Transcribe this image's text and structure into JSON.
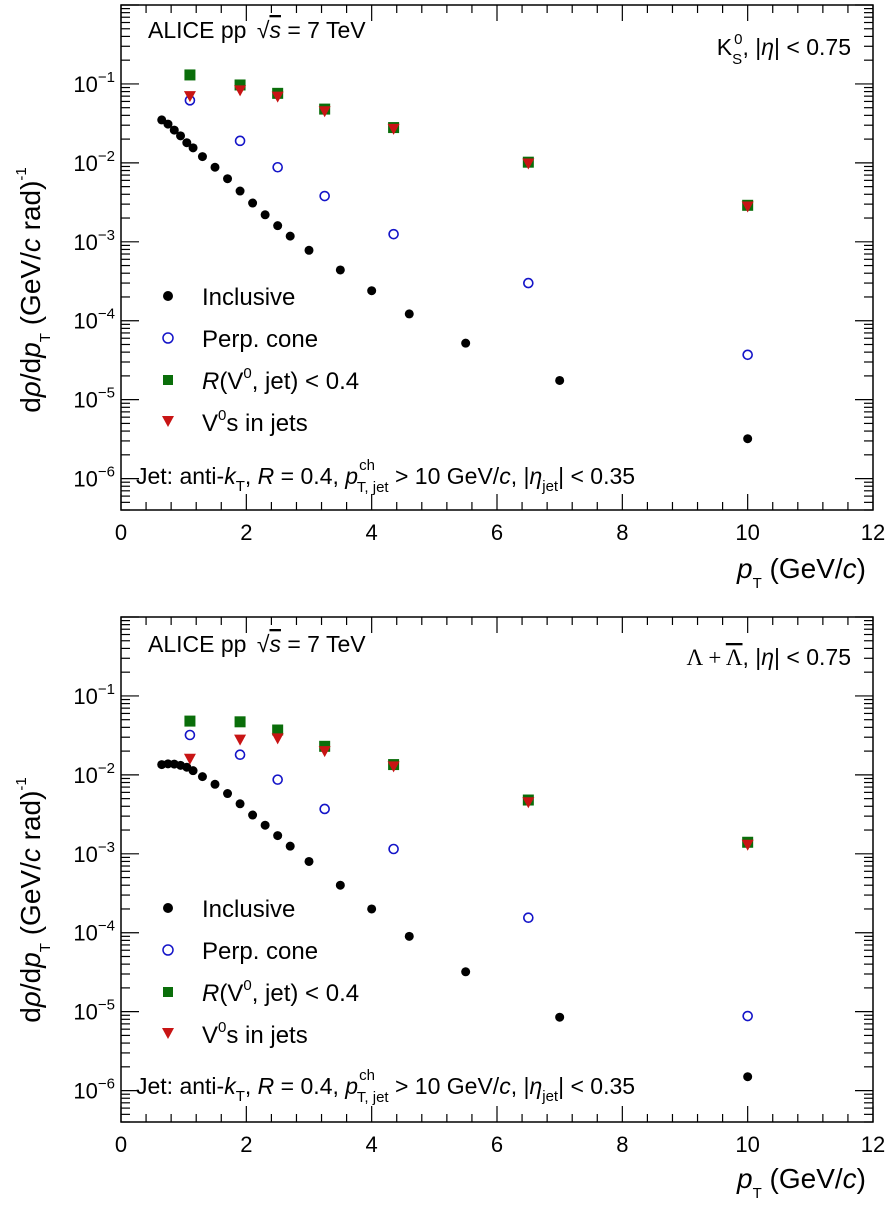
{
  "colors": {
    "inclusive": "#000000",
    "perp_cone": "#1414c8",
    "r_v0_jet": "#0a6e0a",
    "v0_in_jets": "#c81414"
  },
  "chart_data": [
    {
      "type": "scatter",
      "panel": "top",
      "particle_label": "K⁰S, |η| < 0.75",
      "collab_label": "ALICE pp √s = 7 TeV",
      "jet_label": "Jet: anti-kT, R = 0.4, pchT, jet > 10 GeV/c, |ηjet| < 0.35",
      "xlabel": "pT (GeV/c)",
      "ylabel": "dρ/dpT (GeV/c rad)-1",
      "xlim": [
        0,
        12
      ],
      "ylim": [
        4e-07,
        1
      ],
      "yscale": "log",
      "xticks": [
        "0",
        "2",
        "4",
        "6",
        "8",
        "10",
        "12"
      ],
      "yticks": [
        "10-6",
        "10-5",
        "10-4",
        "10-3",
        "10-2",
        "10-1"
      ],
      "legend": [
        "Inclusive",
        "Perp. cone",
        "R(V0, jet) < 0.4",
        "V0s in jets"
      ],
      "series": [
        {
          "name": "Inclusive",
          "marker": "filled-circle",
          "color_key": "inclusive",
          "x": [
            0.65,
            0.75,
            0.85,
            0.95,
            1.05,
            1.15,
            1.3,
            1.5,
            1.7,
            1.9,
            2.1,
            2.3,
            2.5,
            2.7,
            3.0,
            3.5,
            4.0,
            4.6,
            5.5,
            7.0,
            10.0
          ],
          "y": [
            0.035,
            0.031,
            0.026,
            0.022,
            0.018,
            0.0155,
            0.012,
            0.0088,
            0.0063,
            0.0044,
            0.0031,
            0.0022,
            0.0016,
            0.00118,
            0.00078,
            0.00044,
            0.00024,
            0.000122,
            5.2e-05,
            1.75e-05,
            3.2e-06
          ]
        },
        {
          "name": "Perp. cone",
          "marker": "open-circle",
          "color_key": "perp_cone",
          "x": [
            1.1,
            1.9,
            2.5,
            3.25,
            4.35,
            6.5,
            10.0
          ],
          "y": [
            0.062,
            0.019,
            0.0088,
            0.0038,
            0.00125,
            0.0003,
            3.7e-05
          ]
        },
        {
          "name": "R(V0, jet) < 0.4",
          "marker": "square",
          "color_key": "r_v0_jet",
          "x": [
            1.1,
            1.9,
            2.5,
            3.25,
            4.35,
            6.5,
            10.0
          ],
          "y": [
            0.13,
            0.097,
            0.076,
            0.048,
            0.028,
            0.0102,
            0.0029
          ]
        },
        {
          "name": "V0s in jets",
          "marker": "triangle-down",
          "color_key": "v0_in_jets",
          "x": [
            1.1,
            1.9,
            2.5,
            3.25,
            4.35,
            6.5,
            10.0
          ],
          "y": [
            0.07,
            0.083,
            0.069,
            0.045,
            0.027,
            0.0098,
            0.0028
          ]
        }
      ]
    },
    {
      "type": "scatter",
      "panel": "bottom",
      "particle_label": "Λ + Λ̄, |η| < 0.75",
      "collab_label": "ALICE pp √s = 7 TeV",
      "jet_label": "Jet: anti-kT, R = 0.4, pchT, jet > 10 GeV/c, |ηjet| < 0.35",
      "xlabel": "pT (GeV/c)",
      "ylabel": "dρ/dpT (GeV/c rad)-1",
      "xlim": [
        0,
        12
      ],
      "ylim": [
        4e-07,
        1
      ],
      "yscale": "log",
      "xticks": [
        "0",
        "2",
        "4",
        "6",
        "8",
        "10",
        "12"
      ],
      "yticks": [
        "10-6",
        "10-5",
        "10-4",
        "10-3",
        "10-2",
        "10-1"
      ],
      "legend": [
        "Inclusive",
        "Perp. cone",
        "R(V0, jet) < 0.4",
        "V0s in jets"
      ],
      "series": [
        {
          "name": "Inclusive",
          "marker": "filled-circle",
          "color_key": "inclusive",
          "x": [
            0.65,
            0.75,
            0.85,
            0.95,
            1.05,
            1.15,
            1.3,
            1.5,
            1.7,
            1.9,
            2.1,
            2.3,
            2.5,
            2.7,
            3.0,
            3.5,
            4.0,
            4.6,
            5.5,
            7.0,
            10.0
          ],
          "y": [
            0.0135,
            0.0138,
            0.0137,
            0.0132,
            0.0125,
            0.0113,
            0.0095,
            0.0076,
            0.0058,
            0.0043,
            0.0031,
            0.0023,
            0.0017,
            0.00125,
            0.0008,
            0.0004,
            0.0002,
            9e-05,
            3.2e-05,
            8.5e-06,
            1.5e-06
          ]
        },
        {
          "name": "Perp. cone",
          "marker": "open-circle",
          "color_key": "perp_cone",
          "x": [
            1.1,
            1.9,
            2.5,
            3.25,
            4.35,
            6.5,
            10.0
          ],
          "y": [
            0.032,
            0.018,
            0.0087,
            0.0037,
            0.00115,
            0.000155,
            8.8e-06
          ]
        },
        {
          "name": "R(V0, jet) < 0.4",
          "marker": "square",
          "color_key": "r_v0_jet",
          "x": [
            1.1,
            1.9,
            2.5,
            3.25,
            4.35,
            6.5,
            10.0
          ],
          "y": [
            0.048,
            0.047,
            0.037,
            0.023,
            0.0135,
            0.0048,
            0.0014
          ]
        },
        {
          "name": "V0s in jets",
          "marker": "triangle-down",
          "color_key": "v0_in_jets",
          "x": [
            1.1,
            1.9,
            2.5,
            3.25,
            4.35,
            6.5,
            10.0
          ],
          "y": [
            0.016,
            0.028,
            0.029,
            0.02,
            0.0128,
            0.0045,
            0.0013
          ]
        }
      ]
    }
  ]
}
